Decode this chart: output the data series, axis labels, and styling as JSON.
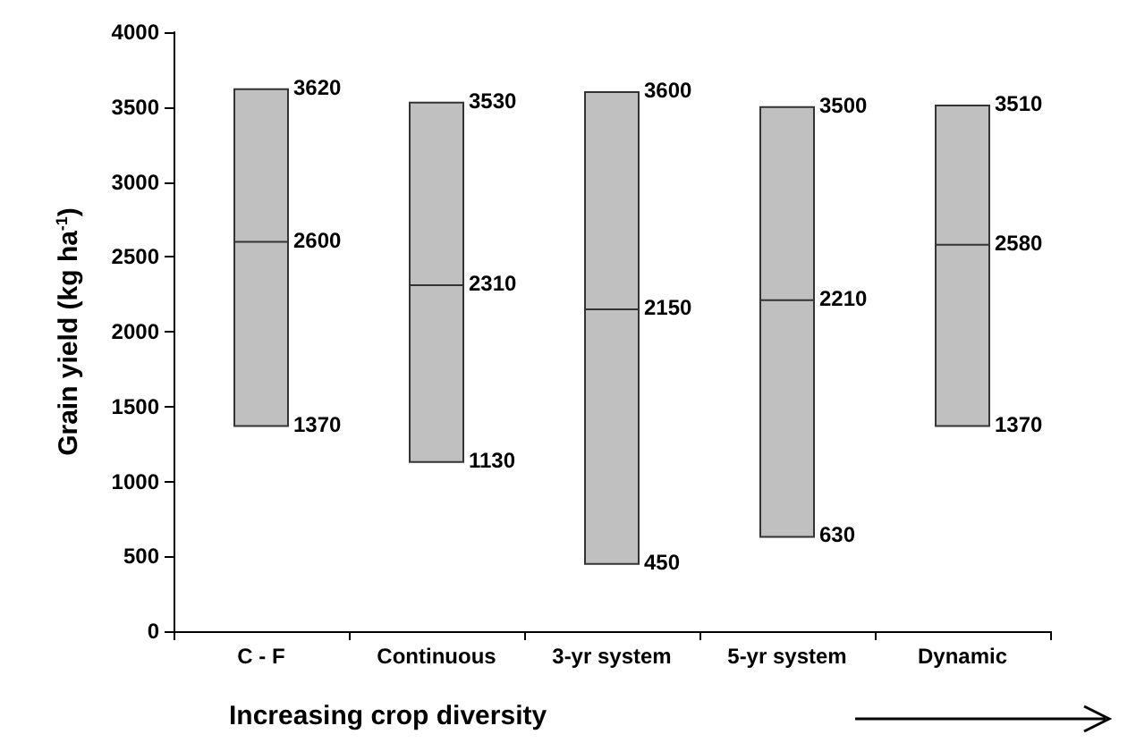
{
  "chart_data": {
    "type": "box",
    "xlabel": "Increasing crop diversity",
    "ylabel": "Grain yield (kg ha$^{-1}$)",
    "categories": [
      "C - F",
      "Continuous",
      "3-yr system",
      "5-yr system",
      "Dynamic"
    ],
    "boxes": [
      {
        "low": 1370,
        "q1": 1370,
        "median": 2600,
        "q3": 3620,
        "high": 3620
      },
      {
        "low": 1130,
        "q1": 1130,
        "median": 2310,
        "q3": 3530,
        "high": 3530
      },
      {
        "low": 450,
        "q1": 450,
        "median": 2150,
        "q3": 3600,
        "high": 3600
      },
      {
        "low": 630,
        "q1": 630,
        "median": 2210,
        "q3": 3500,
        "high": 3500
      },
      {
        "low": 1370,
        "q1": 1370,
        "median": 2580,
        "q3": 3510,
        "high": 3510
      }
    ],
    "color": "#c0c0c0",
    "ylim": [
      0,
      4000
    ],
    "yticks": [
      0,
      500,
      1000,
      1500,
      2000,
      2500,
      3000,
      3500,
      4000
    ],
    "grid": false,
    "annotations": [
      {
        "text": "3620",
        "x": "C - F",
        "y": 3620
      },
      {
        "text": "2600",
        "x": "C - F",
        "y": 2600
      },
      {
        "text": "1370",
        "x": "C - F",
        "y": 1370
      },
      {
        "text": "3530",
        "x": "Continuous",
        "y": 3530
      },
      {
        "text": "2310",
        "x": "Continuous",
        "y": 2310
      },
      {
        "text": "1130",
        "x": "Continuous",
        "y": 1130
      },
      {
        "text": "3600",
        "x": "3-yr system",
        "y": 3600
      },
      {
        "text": "2150",
        "x": "3-yr system",
        "y": 2150
      },
      {
        "text": "450",
        "x": "3-yr system",
        "y": 450
      },
      {
        "text": "3500",
        "x": "5-yr system",
        "y": 3500
      },
      {
        "text": "2210",
        "x": "5-yr system",
        "y": 2210
      },
      {
        "text": "630",
        "x": "5-yr system",
        "y": 630
      },
      {
        "text": "3510",
        "x": "Dynamic",
        "y": 3510
      },
      {
        "text": "2580",
        "x": "Dynamic",
        "y": 2580
      },
      {
        "text": "1370",
        "x": "Dynamic",
        "y": 1370
      }
    ]
  }
}
